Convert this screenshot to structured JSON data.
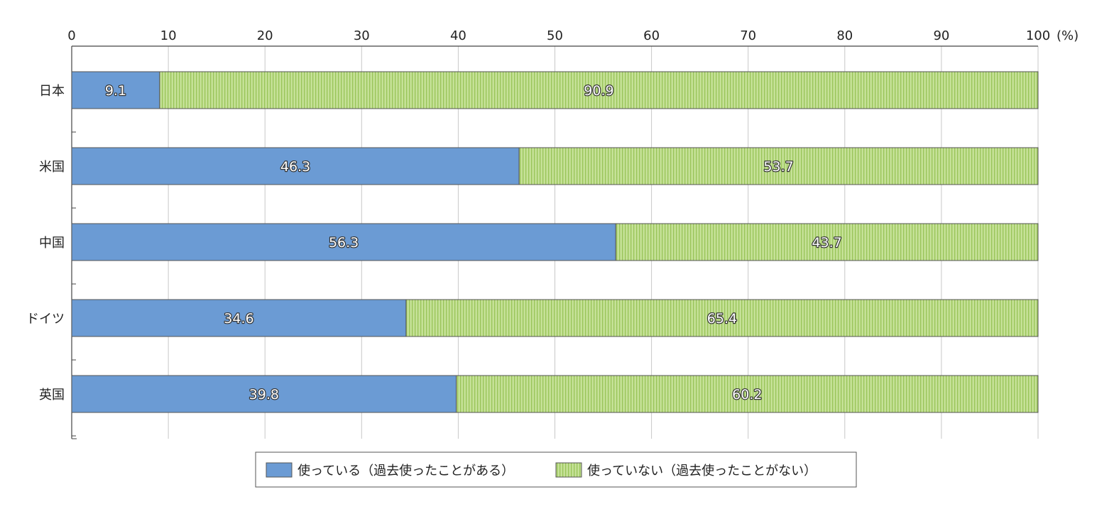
{
  "chart_data": {
    "type": "bar",
    "orientation": "horizontal",
    "stacked": true,
    "categories": [
      "日本",
      "米国",
      "中国",
      "ドイツ",
      "英国"
    ],
    "series": [
      {
        "name": "使っている（過去使ったことがある）",
        "values": [
          9.1,
          46.3,
          56.3,
          34.6,
          39.8
        ]
      },
      {
        "name": "使っていない（過去使ったことがない）",
        "values": [
          90.9,
          53.7,
          43.7,
          65.4,
          60.2
        ]
      }
    ],
    "xlim": [
      0,
      100
    ],
    "xticks": [
      "0",
      "10",
      "20",
      "30",
      "40",
      "50",
      "60",
      "70",
      "80",
      "90",
      "100"
    ],
    "x_unit_label": "(%)",
    "grid": true,
    "legend_placement": "bottom-center",
    "data_labels": true
  },
  "colors": {
    "used": "#6b9bd4",
    "not_used": "#c5e197",
    "not_used_stripe": "#98c458",
    "bar_edge": "#555555",
    "grid": "#c8c8c8",
    "axis": "#444444"
  }
}
